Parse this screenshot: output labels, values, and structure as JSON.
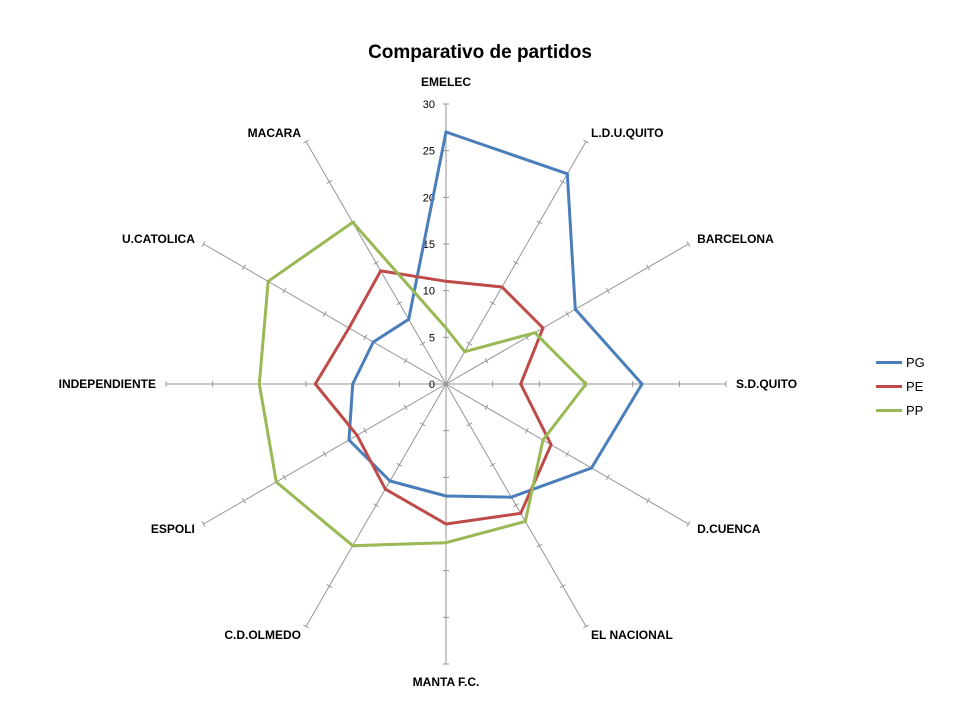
{
  "chart_data": {
    "type": "radar",
    "title": "Comparativo de partidos",
    "categories": [
      "EMELEC",
      "L.D.U.QUITO",
      "BARCELONA",
      "S.D.QUITO",
      "D.CUENCA",
      "EL NACIONAL",
      "MANTA F.C.",
      "C.D.OLMEDO",
      "ESPOLI",
      "INDEPENDIENTE",
      "U.CATOLICA",
      "MACARA"
    ],
    "axis": {
      "min": 0,
      "max": 30,
      "step": 5,
      "tick_labels": [
        "0",
        "5",
        "10",
        "15",
        "20",
        "25",
        "30"
      ]
    },
    "series": [
      {
        "name": "PG",
        "color": "#4a7ebb",
        "values": [
          27,
          26,
          16,
          21,
          18,
          14,
          12,
          12,
          12,
          10,
          9,
          8
        ]
      },
      {
        "name": "PE",
        "color": "#be4b48",
        "values": [
          11,
          12,
          12,
          8,
          13,
          16,
          15,
          13,
          11,
          14,
          12,
          14
        ]
      },
      {
        "name": "PP",
        "color": "#98b954",
        "values": [
          6,
          4,
          11,
          15,
          12,
          17,
          17,
          20,
          21,
          20,
          22,
          20
        ]
      }
    ],
    "legend_position": "right"
  }
}
